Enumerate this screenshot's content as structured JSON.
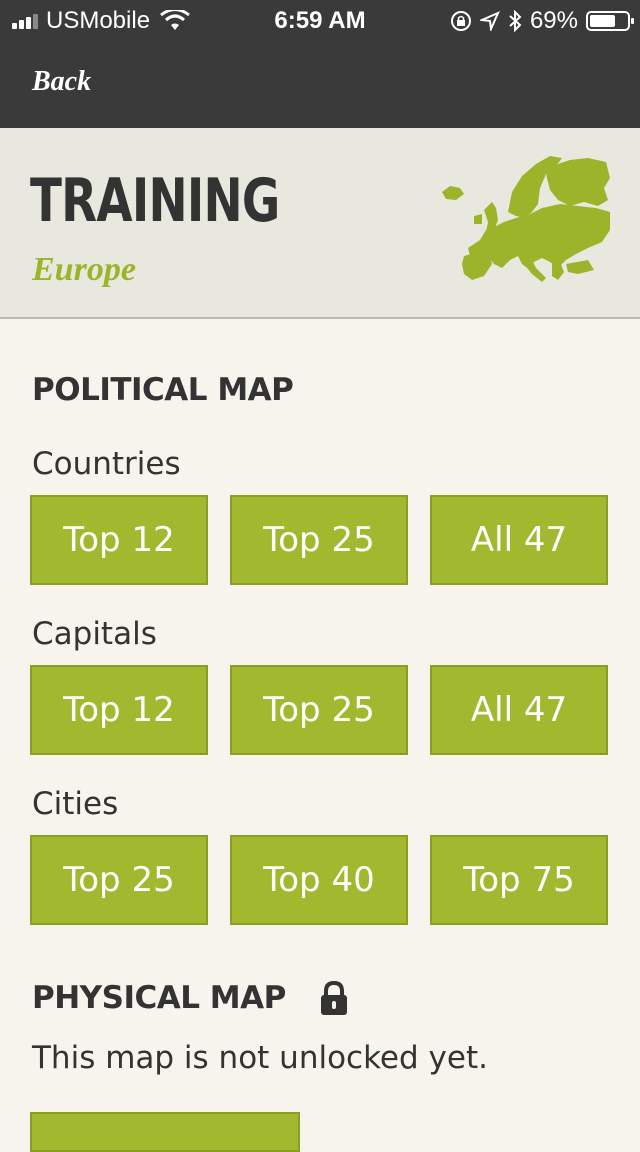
{
  "status_bar": {
    "carrier": "USMobile",
    "time": "6:59 AM",
    "battery": "69%",
    "battery_level": 0.69
  },
  "nav": {
    "back_label": "Back"
  },
  "header": {
    "title": "TRAINING",
    "subtitle": "Europe",
    "map_color": "#9cb42a"
  },
  "political": {
    "title": "POLITICAL MAP",
    "groups": [
      {
        "label": "Countries",
        "buttons": [
          "Top 12",
          "Top 25",
          "All 47"
        ]
      },
      {
        "label": "Capitals",
        "buttons": [
          "Top 12",
          "Top 25",
          "All 47"
        ]
      },
      {
        "label": "Cities",
        "buttons": [
          "Top 25",
          "Top 40",
          "Top 75"
        ]
      }
    ]
  },
  "physical": {
    "title": "PHYSICAL MAP",
    "locked_message": "This map is not unlocked yet."
  },
  "colors": {
    "bar": "#3a3a3a",
    "accent": "#a2b82f",
    "background": "#f6f4ec",
    "header_bg": "#e9e8df"
  }
}
